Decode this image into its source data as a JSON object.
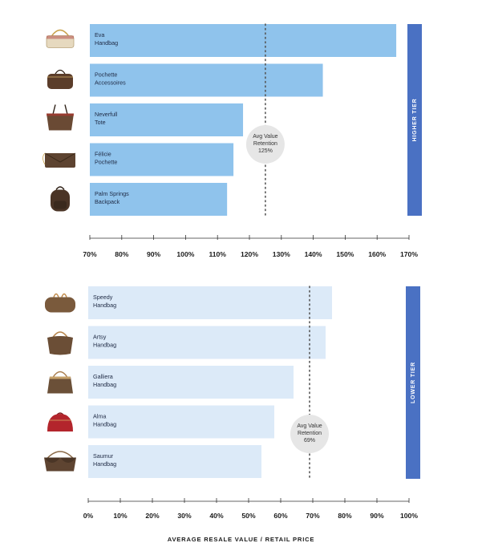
{
  "chart_data": [
    {
      "type": "bar",
      "orientation": "horizontal",
      "categories": [
        "Eva\nHandbag",
        "Pochette\nAccessoires",
        "Neverfull\nTote",
        "Félicie\nPochette",
        "Palm Springs\nBackpack"
      ],
      "values": [
        166,
        143,
        118,
        115,
        113
      ],
      "xlim": [
        70,
        170
      ],
      "xticks": [
        70,
        80,
        90,
        100,
        110,
        120,
        130,
        140,
        150,
        160,
        170
      ],
      "tick_suffix": "%",
      "average": {
        "value": 125,
        "label": [
          "Avg Value",
          "Retention",
          "125%"
        ]
      },
      "tier_label": "HIGHER TIER",
      "bar_color": "#8fc3ec",
      "tier_color": "#4a71c3"
    },
    {
      "type": "bar",
      "orientation": "horizontal",
      "categories": [
        "Speedy\nHandbag",
        "Artsy\nHandbag",
        "Galliera\nHandbag",
        "Alma\nHandbag",
        "Saumur\nHandbag"
      ],
      "values": [
        76,
        74,
        64,
        58,
        54
      ],
      "xlim": [
        0,
        100
      ],
      "xticks": [
        0,
        10,
        20,
        30,
        40,
        50,
        60,
        70,
        80,
        90,
        100
      ],
      "tick_suffix": "%",
      "average": {
        "value": 69,
        "label": [
          "Avg Value",
          "Retention",
          "69%"
        ]
      },
      "tier_label": "LOWER TIER",
      "bar_color": "#dceaf8",
      "tier_color": "#4a71c3"
    }
  ],
  "xlabel": "AVERAGE RESALE VALUE / RETAIL PRICE",
  "bag_icon_colors": {
    "eva": "#e6d9bf",
    "pochette": "#5b3d2a",
    "neverfull": "#6a4a34",
    "felicie": "#5d4330",
    "palm_springs": "#4a3426",
    "speedy": "#7a5a3c",
    "artsy": "#6b4e36",
    "galliera": "#6b5038",
    "alma": "#b3252c",
    "saumur": "#5e4431"
  }
}
